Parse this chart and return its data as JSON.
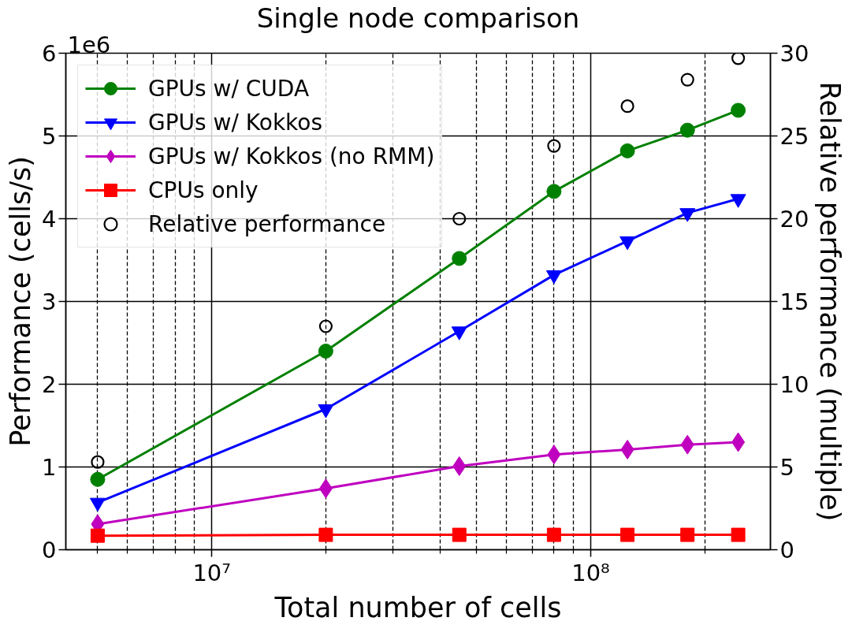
{
  "chart_data": {
    "type": "line",
    "title": "Single node comparison",
    "xlabel": "Total number of cells",
    "ylabel": "Performance (cells/s)",
    "y2label": "Relative performance (multiple)",
    "annotations": [
      "1e6"
    ],
    "x": [
      5000000,
      20000000,
      45000000,
      80000000,
      125000000,
      180000000,
      245000000
    ],
    "log": "x",
    "xlim": [
      4120000,
      298000000
    ],
    "xticks": [
      {
        "value": 5000000,
        "label": null
      },
      {
        "value": 6000000,
        "label": null
      },
      {
        "value": 7000000,
        "label": null
      },
      {
        "value": 8000000,
        "label": null
      },
      {
        "value": 9000000,
        "label": null
      },
      {
        "value": 10000000,
        "label": "10⁷"
      },
      {
        "value": 20000000,
        "label": null
      },
      {
        "value": 30000000,
        "label": null
      },
      {
        "value": 40000000,
        "label": null
      },
      {
        "value": 50000000,
        "label": null
      },
      {
        "value": 60000000,
        "label": null
      },
      {
        "value": 70000000,
        "label": null
      },
      {
        "value": 80000000,
        "label": null
      },
      {
        "value": 90000000,
        "label": null
      },
      {
        "value": 100000000,
        "label": "10⁸"
      },
      {
        "value": 200000000,
        "label": null
      }
    ],
    "ylim": [
      0,
      6
    ],
    "yticks": [
      0,
      1,
      2,
      3,
      4,
      5,
      6
    ],
    "y2lim": [
      0,
      30
    ],
    "y2ticks": [
      0,
      5,
      10,
      15,
      20,
      25,
      30
    ],
    "grid": true,
    "legend": "top left",
    "line_style": "solid",
    "series": [
      {
        "name": "GPUs w/ CUDA",
        "color": "#008000",
        "marker": "circle",
        "values": [
          0.85,
          2.4,
          3.52,
          4.33,
          4.82,
          5.07,
          5.31
        ]
      },
      {
        "name": "GPUs w/ Kokkos",
        "color": "#0000ff",
        "marker": "triangle",
        "values": [
          0.57,
          1.7,
          2.64,
          3.32,
          3.73,
          4.07,
          4.24
        ]
      },
      {
        "name": "GPUs w/ Kokkos (no RMM)",
        "color": "#bf00bf",
        "marker": "diamond",
        "values": [
          0.31,
          0.74,
          1.01,
          1.15,
          1.21,
          1.27,
          1.3
        ]
      },
      {
        "name": "CPUs only",
        "color": "#ff0000",
        "marker": "square",
        "values": [
          0.17,
          0.18,
          0.18,
          0.18,
          0.18,
          0.18,
          0.18
        ]
      },
      {
        "name": "Relative performance",
        "type": "scatter",
        "axis": "y2",
        "color": "#000000",
        "marker": "circle",
        "values": [
          5.3,
          13.5,
          20.0,
          24.4,
          26.8,
          28.4,
          29.7
        ]
      }
    ]
  }
}
